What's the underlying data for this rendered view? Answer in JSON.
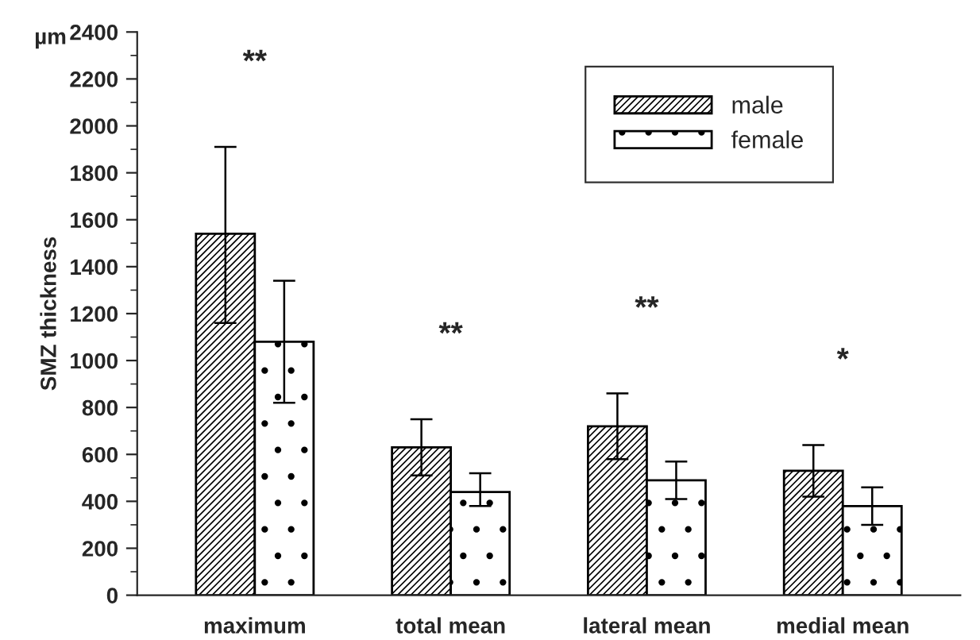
{
  "chart_data": {
    "type": "bar",
    "ylabel": "SMZ thickness",
    "categories": [
      "maximum",
      "total mean",
      "lateral mean",
      "medial mean"
    ],
    "series": [
      {
        "name": "male",
        "color": "#000000",
        "values": [
          1540,
          630,
          720,
          530
        ],
        "errors": [
          [
            1160,
            1910
          ],
          [
            510,
            750
          ],
          [
            580,
            860
          ],
          [
            420,
            640
          ]
        ]
      },
      {
        "name": "female",
        "color": "#000000",
        "values": [
          1080,
          440,
          490,
          380
        ],
        "errors": [
          [
            820,
            1340
          ],
          [
            380,
            520
          ],
          [
            410,
            570
          ],
          [
            300,
            460
          ]
        ]
      }
    ],
    "ylim": [
      0,
      2400
    ],
    "yticks": [
      0,
      200,
      400,
      600,
      800,
      1000,
      1200,
      1400,
      1600,
      1800,
      2000,
      2200,
      2400
    ],
    "annotations": [
      "µm",
      "**",
      "**",
      "**",
      "*"
    ],
    "grid": false,
    "legend": "top right"
  }
}
